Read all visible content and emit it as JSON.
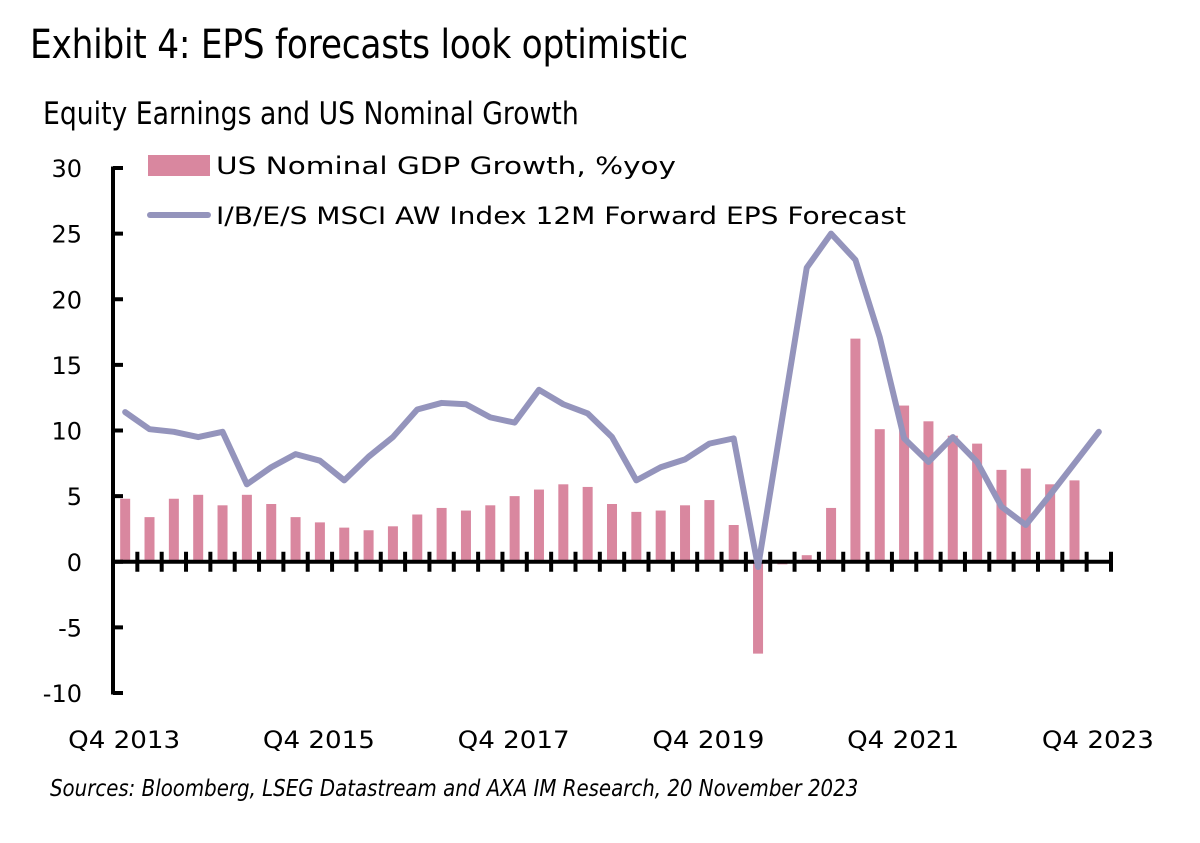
{
  "header": {
    "title": "Exhibit 4: EPS forecasts look optimistic",
    "subtitle": "Equity Earnings and US Nominal Growth"
  },
  "footer": {
    "source": "Sources: Bloomberg, LSEG Datastream and AXA IM Research, 20 November 2023"
  },
  "colors": {
    "bar": "#D9879F",
    "line": "#9494BC",
    "axis": "#000000"
  },
  "chart_data": {
    "type": "bar+line",
    "title": "Equity Earnings and US Nominal Growth",
    "xlabel": "",
    "ylabel": "",
    "ylim": [
      -10,
      30
    ],
    "yticks": [
      30,
      25,
      20,
      15,
      10,
      5,
      0,
      -5,
      -10
    ],
    "x_tick_labels": [
      "Q4 2013",
      "Q4 2015",
      "Q4 2017",
      "Q4 2019",
      "Q4 2021",
      "Q4 2023"
    ],
    "x_tick_label_indices": [
      0,
      8,
      16,
      24,
      32,
      40
    ],
    "grid": false,
    "legend": "top-left",
    "categories": [
      "Q4 2013",
      "Q1 2014",
      "Q2 2014",
      "Q3 2014",
      "Q4 2014",
      "Q1 2015",
      "Q2 2015",
      "Q3 2015",
      "Q4 2015",
      "Q1 2016",
      "Q2 2016",
      "Q3 2016",
      "Q4 2016",
      "Q1 2017",
      "Q2 2017",
      "Q3 2017",
      "Q4 2017",
      "Q1 2018",
      "Q2 2018",
      "Q3 2018",
      "Q4 2018",
      "Q1 2019",
      "Q2 2019",
      "Q3 2019",
      "Q4 2019",
      "Q1 2020",
      "Q2 2020",
      "Q3 2020",
      "Q4 2020",
      "Q1 2021",
      "Q2 2021",
      "Q3 2021",
      "Q4 2021",
      "Q1 2022",
      "Q2 2022",
      "Q3 2022",
      "Q4 2022",
      "Q1 2023",
      "Q2 2023",
      "Q3 2023",
      "Q4 2023"
    ],
    "series": [
      {
        "name": "US Nominal GDP Growth, %yoy",
        "type": "bar",
        "values": [
          4.8,
          3.4,
          4.8,
          5.1,
          4.3,
          5.1,
          4.4,
          3.4,
          3.0,
          2.6,
          2.4,
          2.7,
          3.6,
          4.1,
          3.9,
          4.3,
          5.0,
          5.5,
          5.9,
          5.7,
          4.4,
          3.8,
          3.9,
          4.3,
          4.7,
          2.8,
          -7.0,
          -0.2,
          0.5,
          4.1,
          17.0,
          10.1,
          11.9,
          10.7,
          9.6,
          9.0,
          7.0,
          7.1,
          5.9,
          6.2,
          null
        ]
      },
      {
        "name": "I/B/E/S MSCI AW Index 12M Forward EPS Forecast",
        "type": "line",
        "values": [
          11.4,
          10.1,
          9.9,
          9.5,
          9.9,
          5.9,
          7.2,
          8.2,
          7.7,
          6.2,
          8.0,
          9.5,
          11.6,
          12.1,
          12.0,
          11.0,
          10.6,
          13.1,
          12.0,
          11.3,
          9.5,
          6.2,
          7.2,
          7.8,
          9.0,
          9.4,
          -0.4,
          11.0,
          22.4,
          25.0,
          23.0,
          17.1,
          9.4,
          7.6,
          9.5,
          7.6,
          4.2,
          2.8,
          5.1,
          7.5,
          9.9
        ]
      }
    ]
  }
}
